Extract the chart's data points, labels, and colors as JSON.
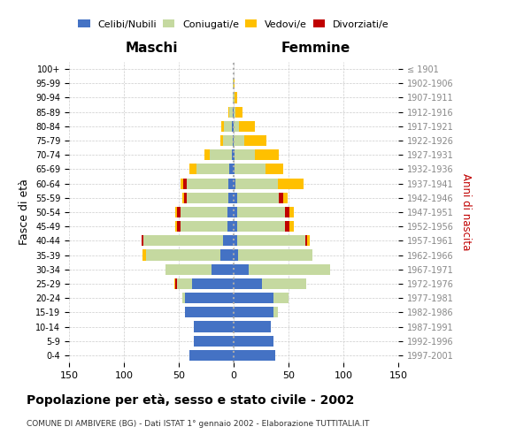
{
  "age_groups": [
    "0-4",
    "5-9",
    "10-14",
    "15-19",
    "20-24",
    "25-29",
    "30-34",
    "35-39",
    "40-44",
    "45-49",
    "50-54",
    "55-59",
    "60-64",
    "65-69",
    "70-74",
    "75-79",
    "80-84",
    "85-89",
    "90-94",
    "95-99",
    "100+"
  ],
  "birth_years": [
    "1997-2001",
    "1992-1996",
    "1987-1991",
    "1982-1986",
    "1977-1981",
    "1972-1976",
    "1967-1971",
    "1962-1966",
    "1957-1961",
    "1952-1956",
    "1947-1951",
    "1942-1946",
    "1937-1941",
    "1932-1936",
    "1927-1931",
    "1922-1926",
    "1917-1921",
    "1912-1916",
    "1907-1911",
    "1902-1906",
    "≤ 1901"
  ],
  "maschi": {
    "celibi": [
      40,
      36,
      36,
      44,
      44,
      38,
      20,
      12,
      10,
      6,
      6,
      5,
      5,
      4,
      2,
      1,
      2,
      1,
      0,
      0,
      0
    ],
    "coniugati": [
      0,
      0,
      0,
      0,
      3,
      14,
      42,
      68,
      72,
      42,
      42,
      38,
      38,
      30,
      20,
      9,
      7,
      3,
      1,
      1,
      0
    ],
    "vedovi": [
      0,
      0,
      0,
      0,
      0,
      1,
      0,
      3,
      0,
      1,
      1,
      2,
      2,
      6,
      5,
      2,
      2,
      1,
      0,
      0,
      0
    ],
    "divorziati": [
      0,
      0,
      0,
      0,
      0,
      1,
      0,
      0,
      2,
      4,
      4,
      2,
      3,
      0,
      0,
      0,
      0,
      0,
      0,
      0,
      0
    ]
  },
  "femmine": {
    "nubili": [
      38,
      36,
      34,
      36,
      36,
      26,
      14,
      4,
      3,
      3,
      3,
      3,
      2,
      1,
      1,
      0,
      0,
      0,
      0,
      0,
      0
    ],
    "coniugate": [
      0,
      0,
      0,
      4,
      14,
      40,
      74,
      68,
      62,
      44,
      44,
      38,
      38,
      28,
      18,
      10,
      5,
      2,
      1,
      0,
      0
    ],
    "vedove": [
      0,
      0,
      0,
      0,
      0,
      0,
      0,
      0,
      2,
      4,
      4,
      4,
      24,
      16,
      22,
      20,
      14,
      6,
      2,
      1,
      0
    ],
    "divorziate": [
      0,
      0,
      0,
      0,
      0,
      0,
      0,
      0,
      2,
      4,
      4,
      4,
      0,
      0,
      0,
      0,
      0,
      0,
      0,
      0,
      0
    ]
  },
  "colors": {
    "celibi_nubili": "#4472c4",
    "coniugati": "#c5d9a0",
    "vedovi": "#ffc000",
    "divorziati": "#c00000"
  },
  "xlim": 150,
  "title": "Popolazione per età, sesso e stato civile - 2002",
  "subtitle": "COMUNE DI AMBIVERE (BG) - Dati ISTAT 1° gennaio 2002 - Elaborazione TUTTITALIA.IT",
  "ylabel_left": "Fasce di età",
  "ylabel_right": "Anni di nascita",
  "xlabel_left": "Maschi",
  "xlabel_right": "Femmine",
  "bg_color": "#ffffff",
  "grid_color": "#cccccc"
}
